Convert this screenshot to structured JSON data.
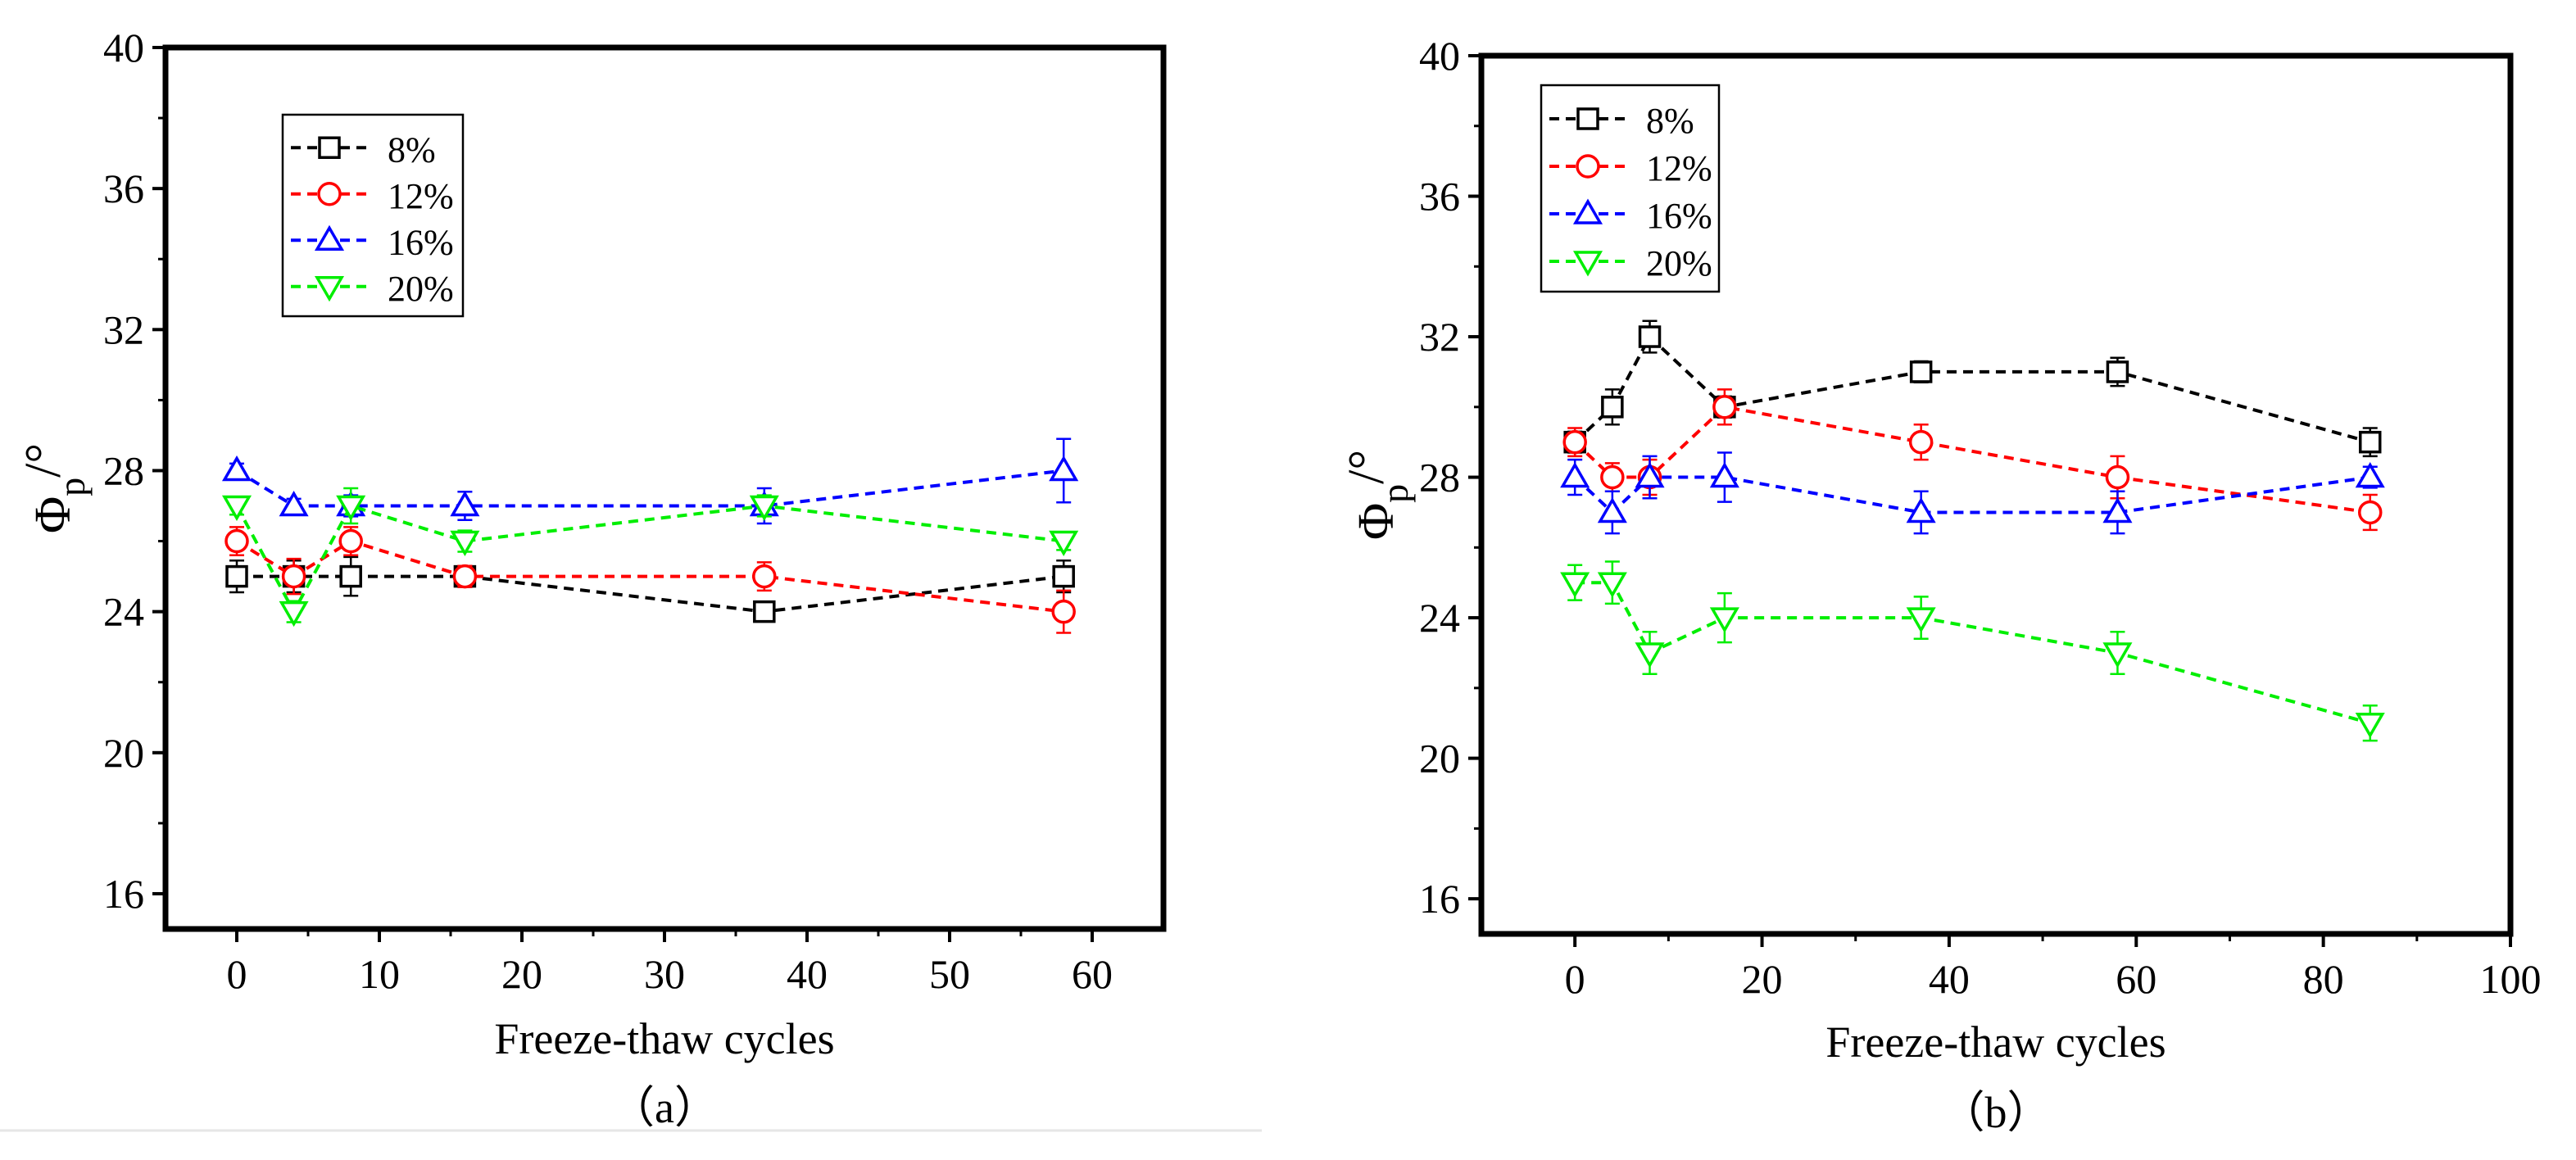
{
  "colors": {
    "8%": "#000000",
    "12%": "#ff0000",
    "16%": "#0000ff",
    "20%": "#00ee00"
  },
  "chart_data": [
    {
      "type": "line",
      "panel_label": "（a）",
      "xlabel": "Freeze-thaw cycles",
      "ylabel_main": "Φ",
      "ylabel_sub": "p",
      "ylabel_unit": "/°",
      "xlim": [
        -5,
        65
      ],
      "ylim": [
        15,
        40
      ],
      "xticks": [
        0,
        10,
        20,
        30,
        40,
        50,
        60
      ],
      "yticks": [
        16,
        20,
        24,
        28,
        32,
        36,
        40
      ],
      "legend_position": "top-left",
      "series": [
        {
          "name": "8%",
          "marker": "square",
          "x": [
            0,
            4,
            8,
            16,
            37,
            58
          ],
          "y": [
            25,
            25,
            25,
            25,
            24,
            25
          ],
          "err": [
            0.45,
            0.45,
            0.55,
            0.3,
            0.2,
            0.45
          ]
        },
        {
          "name": "12%",
          "marker": "circle",
          "x": [
            0,
            4,
            8,
            16,
            37,
            58
          ],
          "y": [
            26,
            25,
            26,
            25,
            25,
            24
          ],
          "err": [
            0.4,
            0.5,
            0.4,
            0.3,
            0.4,
            0.6
          ]
        },
        {
          "name": "16%",
          "marker": "triangle-up",
          "x": [
            0,
            4,
            8,
            16,
            37,
            58
          ],
          "y": [
            28,
            27,
            27,
            27,
            27,
            28
          ],
          "err": [
            0.2,
            0.2,
            0.3,
            0.4,
            0.5,
            0.9
          ]
        },
        {
          "name": "20%",
          "marker": "triangle-down",
          "x": [
            0,
            4,
            8,
            16,
            37,
            58
          ],
          "y": [
            27,
            24,
            27,
            26,
            27,
            26
          ],
          "err": [
            0.25,
            0.3,
            0.5,
            0.3,
            0.3,
            0.25
          ]
        }
      ]
    },
    {
      "type": "line",
      "panel_label": "（b）",
      "xlabel": "Freeze-thaw cycles",
      "ylabel_main": "Φ",
      "ylabel_sub": "p",
      "ylabel_unit": "/°",
      "xlim": [
        -10,
        100
      ],
      "ylim": [
        15,
        40
      ],
      "xticks": [
        0,
        20,
        40,
        60,
        80,
        100
      ],
      "yticks": [
        16,
        20,
        24,
        28,
        32,
        36,
        40
      ],
      "legend_position": "top-left",
      "series": [
        {
          "name": "8%",
          "marker": "square",
          "x": [
            0,
            4,
            8,
            16,
            37,
            58,
            85
          ],
          "y": [
            29,
            30,
            32,
            30,
            31,
            31,
            29
          ],
          "err": [
            0.3,
            0.5,
            0.45,
            0.3,
            0.3,
            0.4,
            0.4
          ]
        },
        {
          "name": "12%",
          "marker": "circle",
          "x": [
            0,
            4,
            8,
            16,
            37,
            58,
            85
          ],
          "y": [
            29,
            28,
            28,
            30,
            29,
            28,
            27
          ],
          "err": [
            0.4,
            0.4,
            0.5,
            0.5,
            0.5,
            0.6,
            0.5
          ]
        },
        {
          "name": "16%",
          "marker": "triangle-up",
          "x": [
            0,
            4,
            8,
            16,
            37,
            58,
            85
          ],
          "y": [
            28,
            27,
            28,
            28,
            27,
            27,
            28
          ],
          "err": [
            0.5,
            0.6,
            0.6,
            0.7,
            0.6,
            0.6,
            0.3
          ]
        },
        {
          "name": "20%",
          "marker": "triangle-down",
          "x": [
            0,
            4,
            8,
            16,
            37,
            58,
            85
          ],
          "y": [
            25,
            25,
            23,
            24,
            24,
            23,
            21
          ],
          "err": [
            0.5,
            0.6,
            0.6,
            0.7,
            0.6,
            0.6,
            0.5
          ]
        }
      ]
    }
  ]
}
